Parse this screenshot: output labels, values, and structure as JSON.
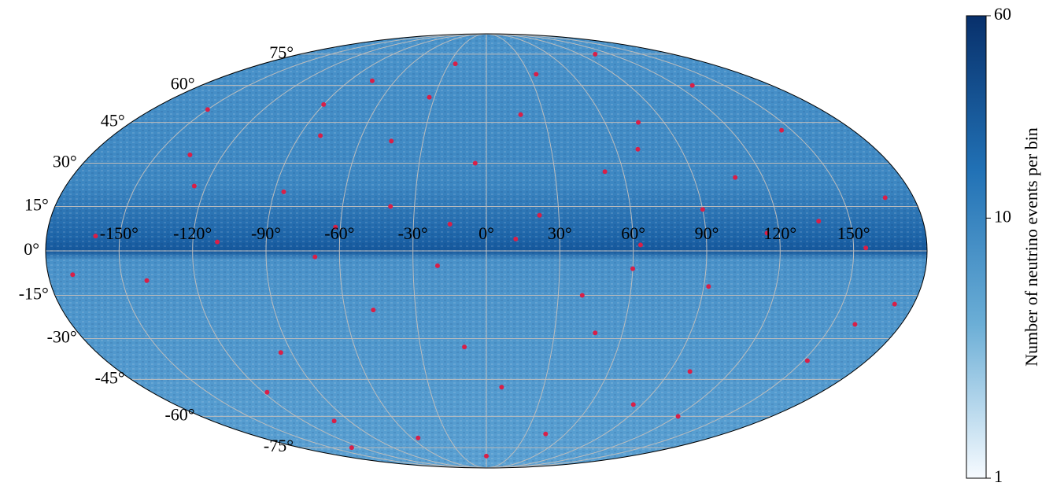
{
  "chart_data": {
    "type": "scatter",
    "projection": "mollweide",
    "xlim": [
      -180,
      180
    ],
    "ylim": [
      -90,
      90
    ],
    "xticks": [
      {
        "value": -150,
        "label": "-150°"
      },
      {
        "value": -120,
        "label": "-120°"
      },
      {
        "value": -90,
        "label": "-90°"
      },
      {
        "value": -60,
        "label": "-60°"
      },
      {
        "value": -30,
        "label": "-30°"
      },
      {
        "value": 0,
        "label": "0°"
      },
      {
        "value": 30,
        "label": "30°"
      },
      {
        "value": 60,
        "label": "60°"
      },
      {
        "value": 90,
        "label": "90°"
      },
      {
        "value": 120,
        "label": "120°"
      },
      {
        "value": 150,
        "label": "150°"
      }
    ],
    "yticks": [
      {
        "value": -75,
        "label": "-75°"
      },
      {
        "value": -60,
        "label": "-60°"
      },
      {
        "value": -45,
        "label": "-45°"
      },
      {
        "value": -30,
        "label": "-30°"
      },
      {
        "value": -15,
        "label": "-15°"
      },
      {
        "value": 0,
        "label": "0°"
      },
      {
        "value": 15,
        "label": "15°"
      },
      {
        "value": 30,
        "label": "30°"
      },
      {
        "value": 45,
        "label": "45°"
      },
      {
        "value": 60,
        "label": "60°"
      },
      {
        "value": 75,
        "label": "75°"
      }
    ],
    "grid": true,
    "series": [
      {
        "color": "#d81f48",
        "x": [
          -160,
          -140,
          -125,
          -110,
          -95,
          -80,
          -62,
          -48,
          -33,
          -20,
          -5,
          8,
          22,
          35,
          48,
          63,
          77,
          92,
          108,
          121,
          137,
          152,
          168,
          -150,
          -118,
          -86,
          -55,
          -25,
          12,
          40,
          70,
          100,
          130,
          160,
          -170,
          -135,
          -100,
          -70,
          -40,
          -10,
          18,
          52,
          85,
          115,
          145,
          172,
          -130,
          -75,
          -15,
          45,
          105,
          155,
          -90,
          0,
          90,
          -45,
          60
        ],
        "y": [
          5,
          -10,
          22,
          3,
          -35,
          40,
          8,
          -20,
          55,
          -5,
          30,
          -48,
          12,
          65,
          -28,
          2,
          45,
          -12,
          25,
          -60,
          10,
          -38,
          18,
          50,
          -50,
          20,
          -70,
          70,
          4,
          -15,
          35,
          -42,
          60,
          -25,
          -8,
          33,
          -62,
          -2,
          15,
          -33,
          48,
          27,
          -55,
          6,
          42,
          -18,
          -75,
          62,
          9,
          -68,
          75,
          1,
          52,
          -80,
          14,
          38,
          -6
        ]
      }
    ],
    "colorbar": {
      "label": "Number of neutrino events per bin",
      "scale": "log",
      "lim": [
        1,
        60
      ],
      "ticks": [
        1,
        10,
        60
      ],
      "colors": [
        "#f7fbff",
        "#6baed6",
        "#2171b5",
        "#08306b"
      ]
    }
  }
}
